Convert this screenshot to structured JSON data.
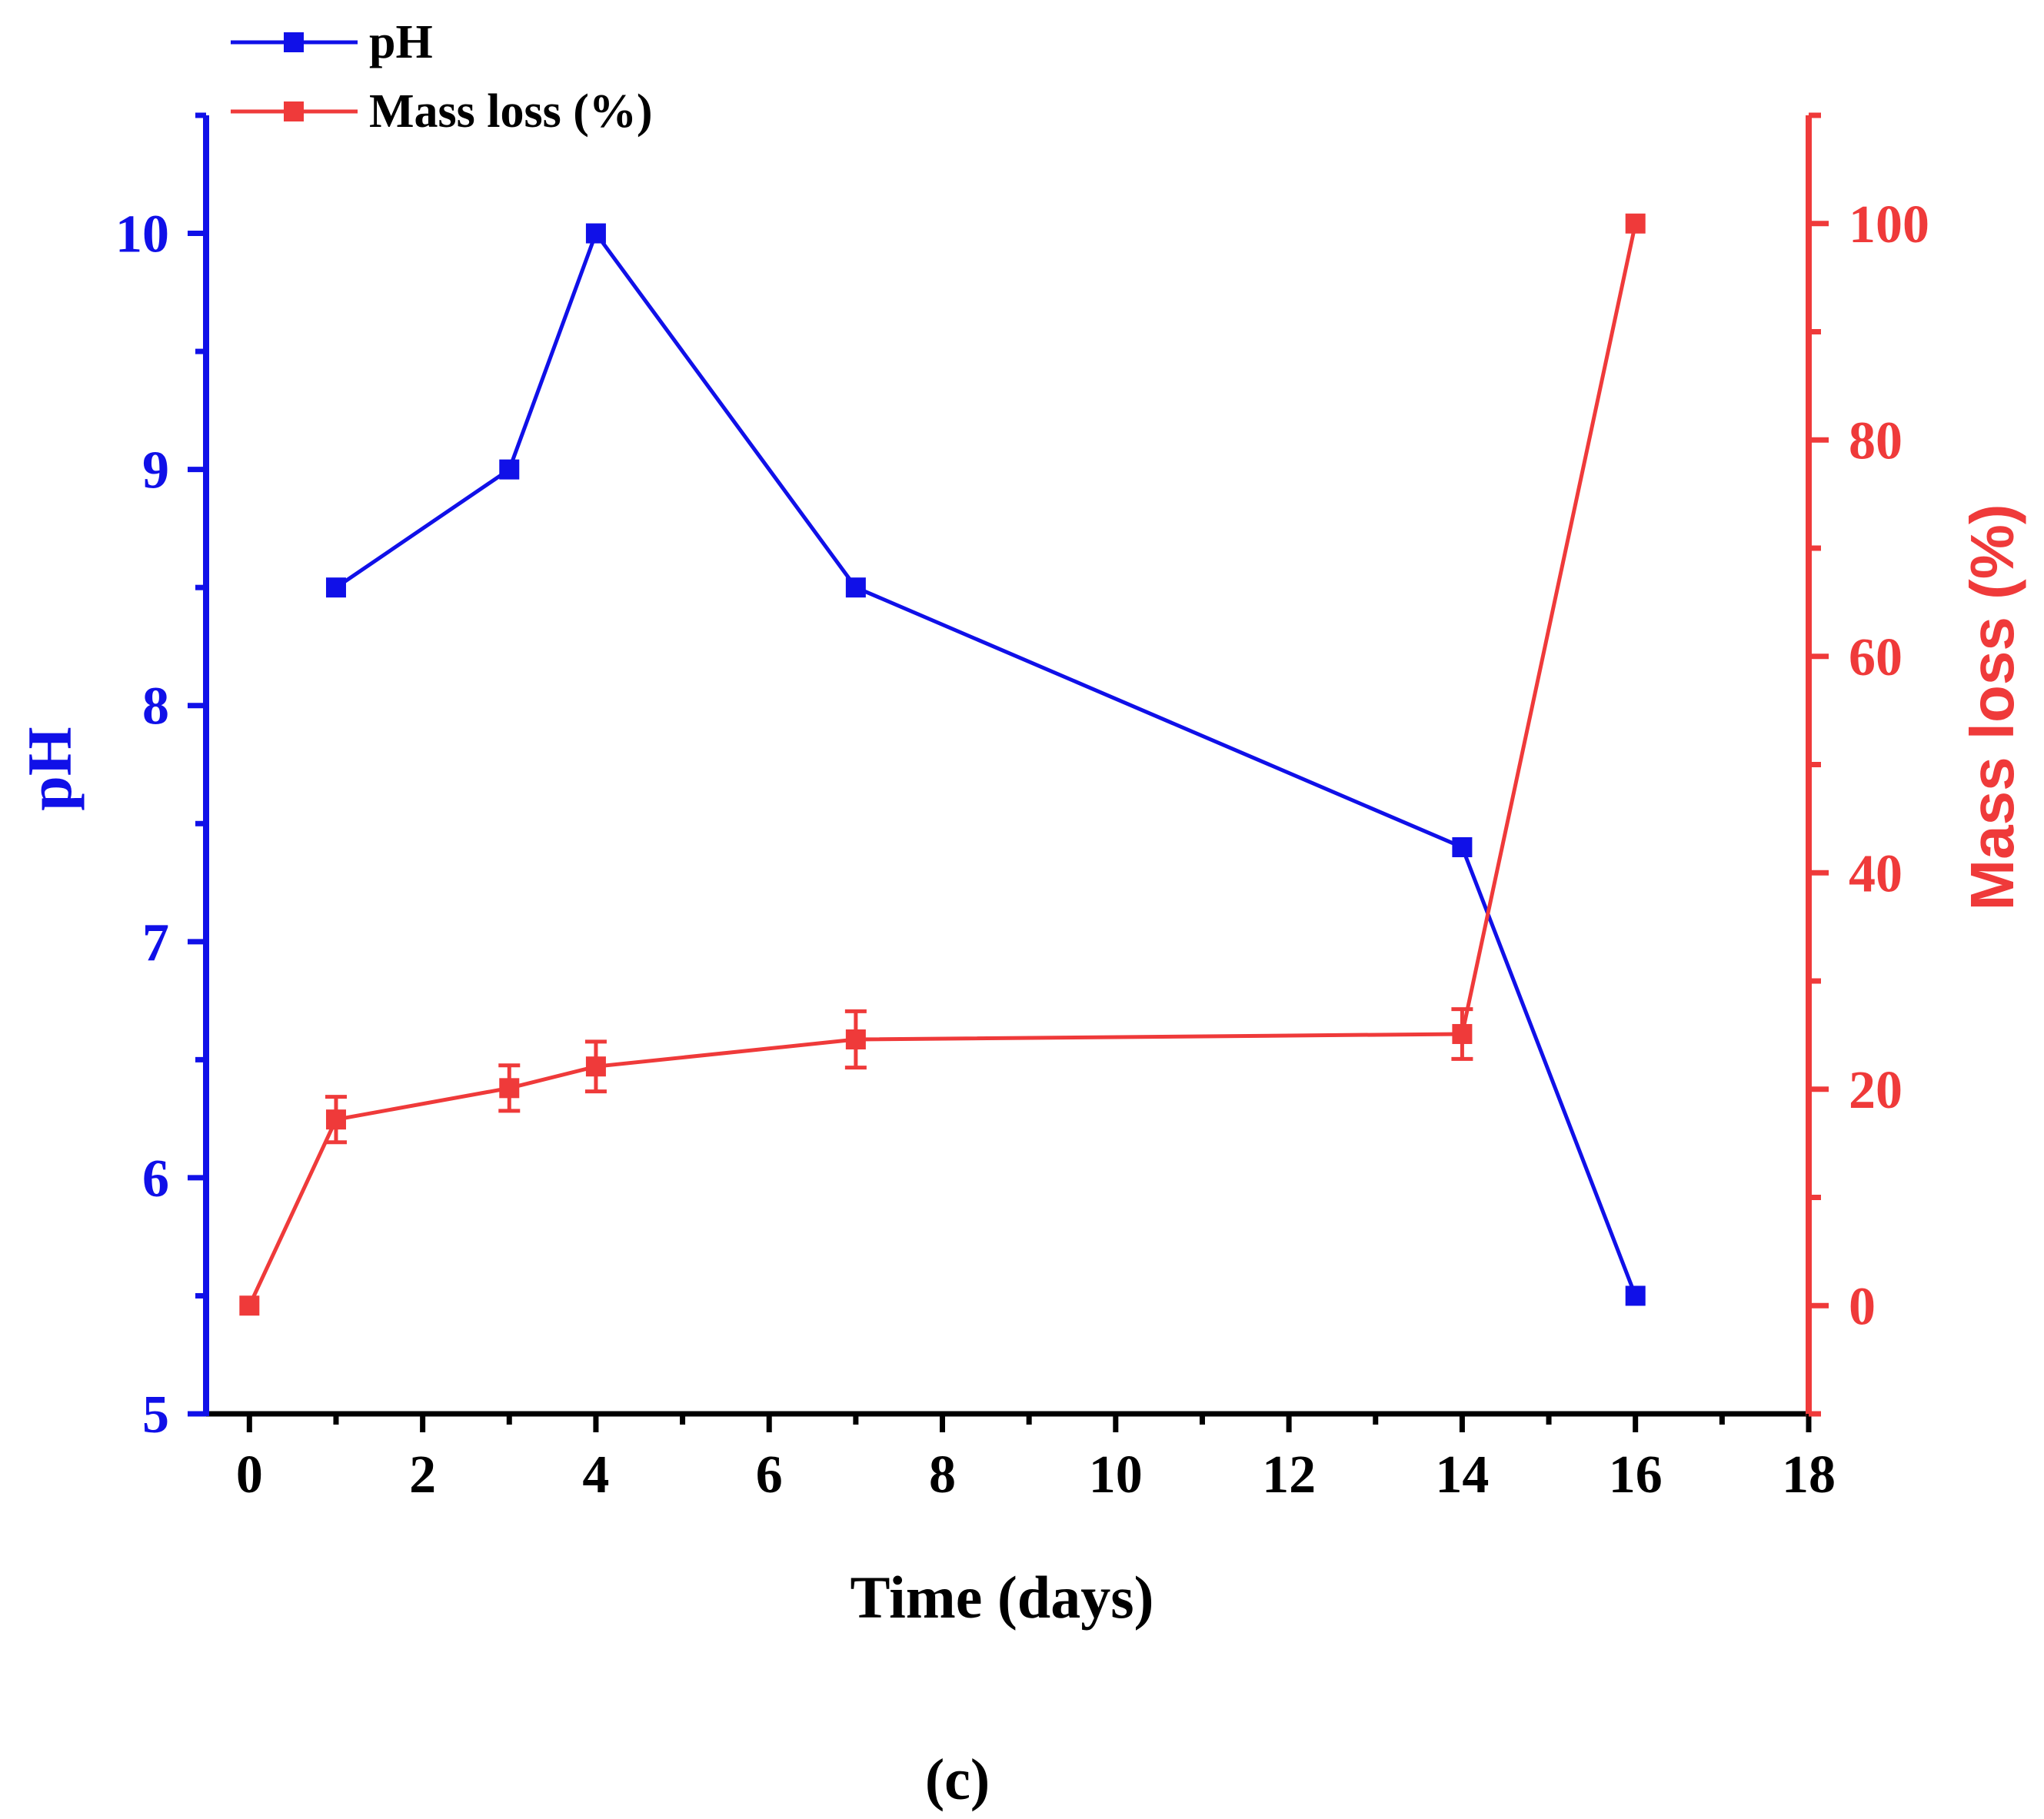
{
  "chart_data": {
    "type": "line",
    "caption": "(c)",
    "xlabel": "Time (days)",
    "xlim": [
      -0.5,
      18
    ],
    "xticks": [
      0,
      2,
      4,
      6,
      8,
      10,
      12,
      14,
      16,
      18
    ],
    "y_left": {
      "label": "pH",
      "lim": [
        5,
        10.5
      ],
      "ticks": [
        5,
        6,
        7,
        8,
        9,
        10
      ],
      "tick_labels": [
        "5",
        "6",
        "7",
        "8",
        "9",
        "10"
      ],
      "color": "#1010e8"
    },
    "y_right": {
      "label": "Mass loss (%)",
      "lim": [
        -10,
        110
      ],
      "ticks": [
        0,
        20,
        40,
        60,
        80,
        100
      ],
      "tick_labels": [
        "0",
        "20",
        "40",
        "60",
        "80",
        "100"
      ],
      "color": "#ef3a3a"
    },
    "legend": {
      "position": "top-left",
      "entries": [
        "pH",
        "Mass loss (%)"
      ]
    },
    "series": [
      {
        "name": "pH",
        "axis": "left",
        "color": "#1010e8",
        "x": [
          1,
          3,
          4,
          7,
          14,
          16
        ],
        "values": [
          8.5,
          9.0,
          10.0,
          8.5,
          7.4,
          5.5
        ]
      },
      {
        "name": "Mass loss (%)",
        "axis": "right",
        "color": "#ef3a3a",
        "x": [
          0,
          1,
          3,
          4,
          7,
          14,
          16
        ],
        "values": [
          0,
          17.2,
          20.1,
          22.1,
          24.6,
          25.1,
          100
        ],
        "errors": [
          0,
          2.1,
          2.1,
          2.3,
          2.6,
          2.3,
          0
        ]
      }
    ]
  }
}
